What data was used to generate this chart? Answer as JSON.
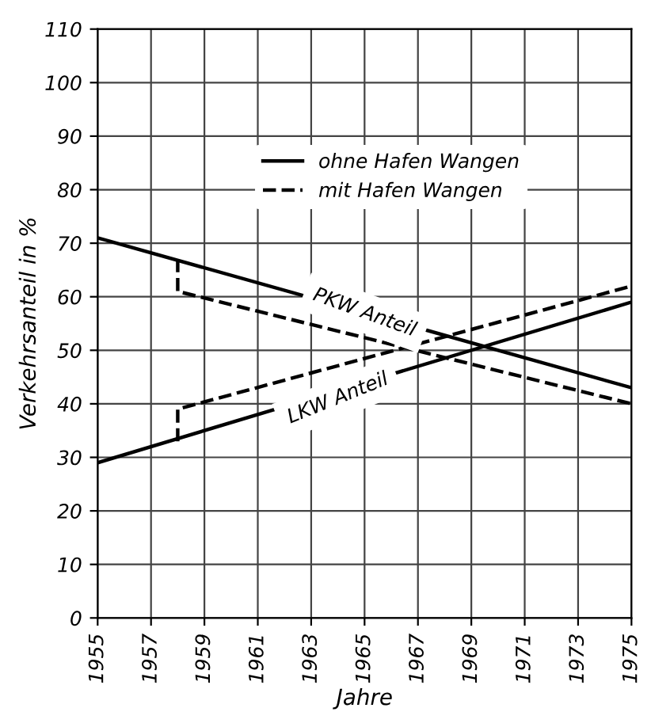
{
  "chart_data": {
    "type": "line",
    "xlabel": "Jahre",
    "ylabel": "Verkehrsanteil in %",
    "xlim": [
      1955,
      1975
    ],
    "xticks": [
      1955,
      1957,
      1959,
      1961,
      1963,
      1965,
      1967,
      1969,
      1971,
      1973,
      1975
    ],
    "ylim": [
      0,
      110
    ],
    "yticks": [
      0,
      10,
      20,
      30,
      40,
      50,
      60,
      70,
      80,
      90,
      100,
      110
    ],
    "grid": true,
    "legend": "top",
    "marker": "none",
    "series": [
      {
        "name": "ohne Hafen Wangen",
        "color": "#000000",
        "line_style": "solid",
        "x": [
          1955,
          1975
        ],
        "values": [
          71,
          43
        ]
      },
      {
        "color": "#000000",
        "line_style": "solid",
        "x": [
          1955,
          1975
        ],
        "values": [
          29,
          59
        ]
      },
      {
        "name": "mit Hafen Wangen",
        "color": "#000000",
        "line_style": "dashed",
        "x": [
          1958,
          1958,
          1975
        ],
        "values": [
          67,
          61,
          40
        ]
      },
      {
        "color": "#000000",
        "line_style": "dashed",
        "x": [
          1958,
          1958,
          1975
        ],
        "values": [
          33,
          39,
          62
        ]
      }
    ],
    "annotations": [
      {
        "text": "PKW Anteil",
        "x": 1965,
        "y": 57
      },
      {
        "text": "LKW Anteil",
        "x": 1964,
        "y": 41
      }
    ]
  }
}
